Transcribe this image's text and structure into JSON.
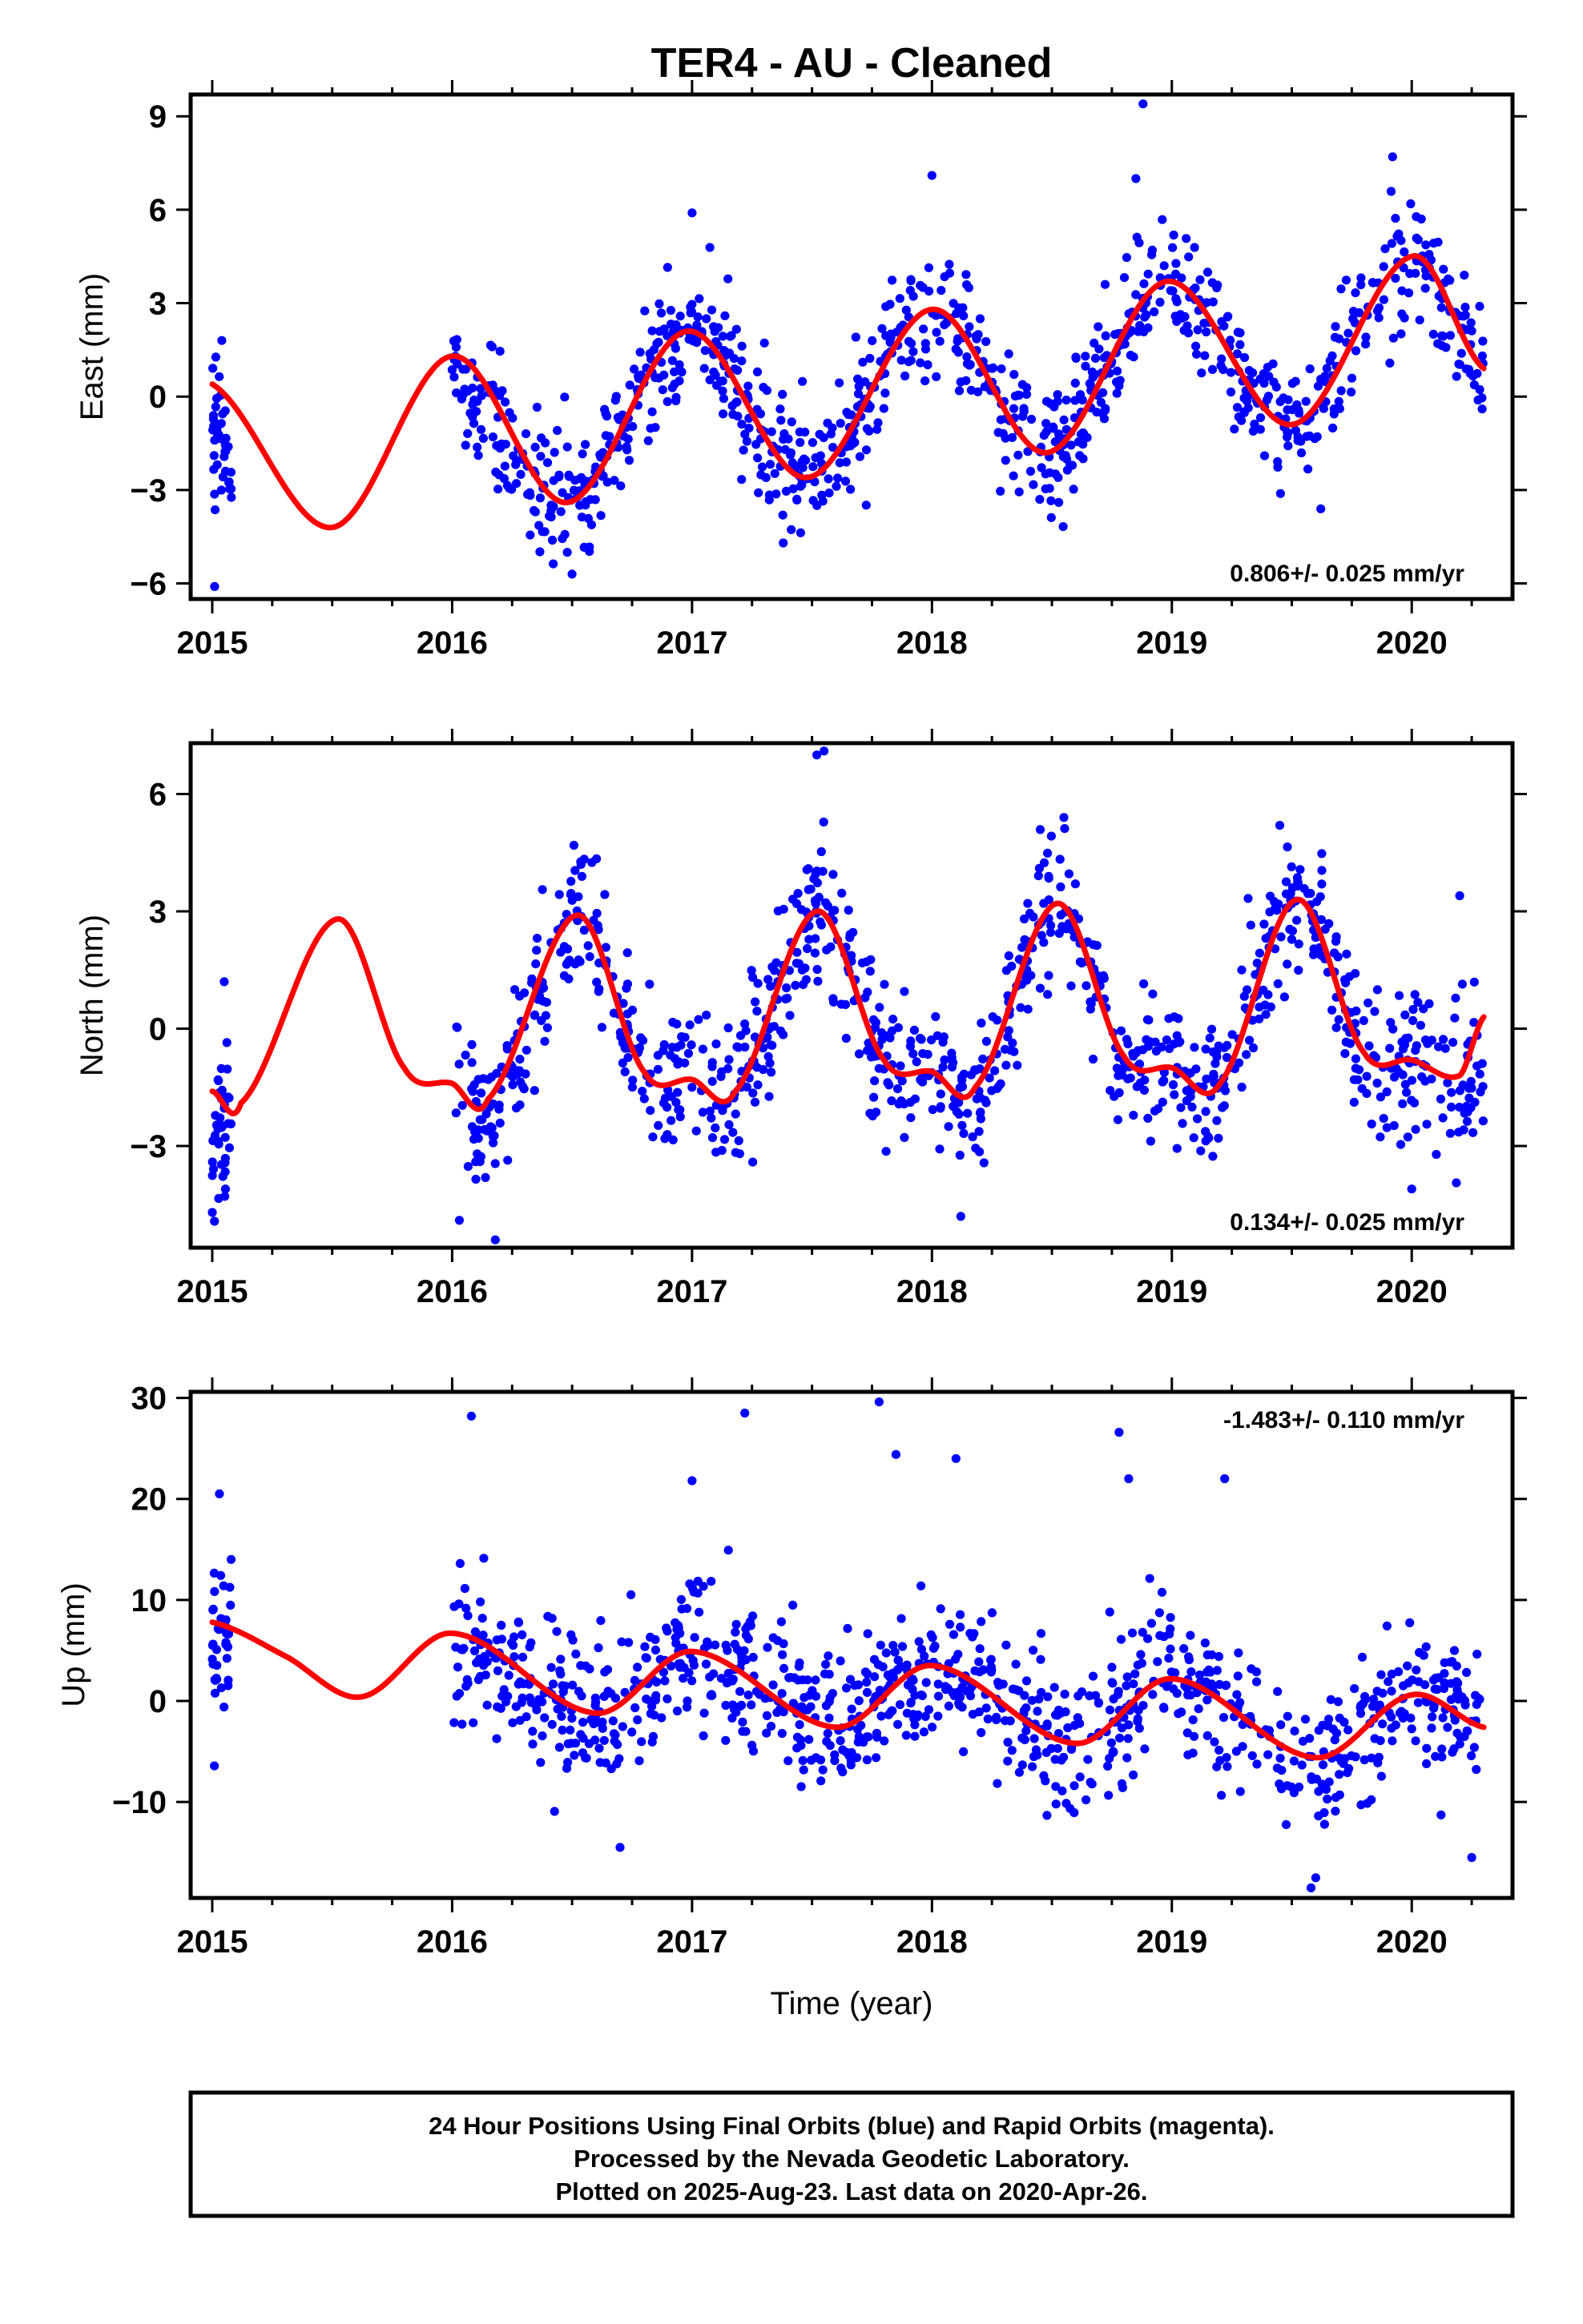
{
  "title": "TER4  - AU - Cleaned",
  "xlabel": "Time (year)",
  "footer": {
    "line1": "24 Hour Positions Using Final Orbits (blue) and Rapid Orbits (magenta).",
    "line2": "Processed by the Nevada Geodetic Laboratory.",
    "line3": "Plotted on 2025-Aug-23. Last data on 2020-Apr-26."
  },
  "colors": {
    "final_orbits": "#0000ff",
    "model_fit": "#ff0000",
    "rapid_orbits": "#ff00ff"
  },
  "chart_data": [
    {
      "type": "scatter",
      "panel": "east",
      "ylabel": "East (mm)",
      "xlim": [
        2014.91,
        2020.42
      ],
      "ylim": [
        -6.5,
        9.7
      ],
      "xticks": [
        2015,
        2016,
        2017,
        2018,
        2019,
        2020
      ],
      "yticks": [
        -6,
        -3,
        0,
        3,
        6,
        9
      ],
      "ytick_labels": [
        "−6",
        "−3",
        "0",
        "3",
        "6",
        "9"
      ],
      "rate_text": "0.806+/- 0.025 mm/yr",
      "rate_position": "bottom-right",
      "model": {
        "x": [
          2015.0,
          2015.5,
          2016.0,
          2016.48,
          2016.98,
          2017.48,
          2018.0,
          2018.48,
          2018.98,
          2019.5,
          2020.0,
          2020.3
        ],
        "y": [
          0.4,
          -4.2,
          1.3,
          -3.4,
          2.1,
          -2.6,
          2.8,
          -1.8,
          3.7,
          -0.9,
          4.5,
          0.9
        ]
      },
      "anchors": {
        "x": [
          2015.0,
          2015.08,
          2016.0,
          2016.48,
          2016.98,
          2017.48,
          2018.0,
          2018.48,
          2018.98,
          2019.5,
          2020.0,
          2020.3
        ],
        "y": [
          -0.8,
          -1.5,
          1.0,
          -3.3,
          2.0,
          -2.5,
          2.7,
          -1.7,
          3.6,
          -0.9,
          4.4,
          0.9
        ]
      },
      "noise": 1.0,
      "n_points": 980,
      "extra_points": {
        "x": [
          2015.01,
          2015.04,
          2016.5,
          2017.0,
          2018.0,
          2018.85,
          2018.88,
          2019.92,
          2017.38,
          2016.48
        ],
        "y": [
          -6.1,
          1.8,
          -5.7,
          5.9,
          7.1,
          7.0,
          9.4,
          7.7,
          -4.7,
          -5.0
        ]
      }
    },
    {
      "type": "scatter",
      "panel": "north",
      "ylabel": "North (mm)",
      "xlim": [
        2014.91,
        2020.42
      ],
      "ylim": [
        -5.6,
        7.3
      ],
      "xticks": [
        2015,
        2016,
        2017,
        2018,
        2019,
        2020
      ],
      "yticks": [
        -3,
        0,
        3,
        6
      ],
      "ytick_labels": [
        "−3",
        "0",
        "3",
        "6"
      ],
      "rate_text": "0.134+/- 0.025 mm/yr",
      "rate_position": "bottom-right",
      "model": {
        "x": [
          2015.0,
          2015.12,
          2015.52,
          2015.8,
          2016.0,
          2016.15,
          2016.52,
          2016.8,
          2017.0,
          2017.18,
          2017.52,
          2017.8,
          2018.0,
          2018.18,
          2018.52,
          2018.8,
          2019.0,
          2019.2,
          2019.52,
          2019.8,
          2020.0,
          2020.2,
          2020.3
        ],
        "y": [
          -1.6,
          -1.9,
          2.8,
          -1.0,
          -1.4,
          -1.8,
          2.9,
          -1.1,
          -1.3,
          -1.6,
          3.0,
          -0.8,
          -1.1,
          -1.5,
          3.2,
          -0.7,
          -1.0,
          -1.4,
          3.3,
          -0.6,
          -0.8,
          -1.2,
          0.3
        ]
      },
      "anchors": {
        "x": [
          2015.0,
          2015.08,
          2016.0,
          2016.15,
          2016.52,
          2016.8,
          2017.0,
          2017.18,
          2017.52,
          2017.8,
          2018.0,
          2018.18,
          2018.52,
          2018.8,
          2019.0,
          2019.2,
          2019.52,
          2019.8,
          2020.0,
          2020.2,
          2020.3
        ],
        "y": [
          -3.0,
          -2.0,
          -1.2,
          -2.2,
          2.8,
          -1.0,
          -1.2,
          -1.5,
          3.0,
          -0.8,
          -1.0,
          -1.5,
          3.1,
          -0.7,
          -1.0,
          -1.4,
          3.2,
          -0.6,
          -0.9,
          -1.3,
          -0.5
        ]
      },
      "noise": 0.9,
      "n_points": 980,
      "extra_points": {
        "x": [
          2015.0,
          2015.05,
          2016.03,
          2016.18,
          2017.52,
          2017.55,
          2018.12,
          2018.55,
          2019.45,
          2020.2,
          2020.0
        ],
        "y": [
          -4.7,
          1.2,
          -4.9,
          -5.4,
          7.0,
          7.1,
          -4.8,
          5.4,
          5.2,
          3.4,
          -4.1
        ]
      }
    },
    {
      "type": "scatter",
      "panel": "up",
      "ylabel": "Up (mm)",
      "xlim": [
        2014.91,
        2020.42
      ],
      "ylim": [
        -19.5,
        30.6
      ],
      "xticks": [
        2015,
        2016,
        2017,
        2018,
        2019,
        2020
      ],
      "yticks": [
        -10,
        0,
        10,
        20,
        30
      ],
      "ytick_labels": [
        "−10",
        "0",
        "10",
        "20",
        "30"
      ],
      "rate_text": "-1.483+/- 0.110 mm/yr",
      "rate_position": "top-right",
      "model": {
        "x": [
          2015.0,
          2015.3,
          2015.62,
          2016.0,
          2016.6,
          2017.0,
          2017.6,
          2018.0,
          2018.6,
          2019.0,
          2019.6,
          2020.0,
          2020.3
        ],
        "y": [
          7.8,
          4.5,
          0.4,
          6.7,
          -1.2,
          4.9,
          -2.6,
          3.5,
          -4.2,
          2.2,
          -5.6,
          0.6,
          -2.6
        ]
      },
      "anchors": {
        "x": [
          2015.0,
          2015.08,
          2016.0,
          2016.6,
          2017.0,
          2017.6,
          2018.0,
          2018.6,
          2019.0,
          2019.6,
          2020.0,
          2020.3
        ],
        "y": [
          6.0,
          5.0,
          6.0,
          -2.0,
          5.0,
          -2.5,
          3.0,
          -4.0,
          2.0,
          -6.0,
          1.0,
          -2.5
        ]
      },
      "noise": 3.6,
      "n_points": 980,
      "extra_points": {
        "x": [
          2016.08,
          2017.22,
          2017.78,
          2017.85,
          2018.1,
          2018.78,
          2018.82,
          2019.22,
          2019.58,
          2019.6,
          2016.7,
          2020.25,
          2015.03,
          2017.0
        ],
        "y": [
          28.2,
          28.5,
          29.6,
          24.4,
          24.0,
          26.6,
          22.0,
          22.0,
          -18.5,
          -17.5,
          -14.5,
          -15.5,
          20.5,
          21.8
        ]
      }
    }
  ]
}
